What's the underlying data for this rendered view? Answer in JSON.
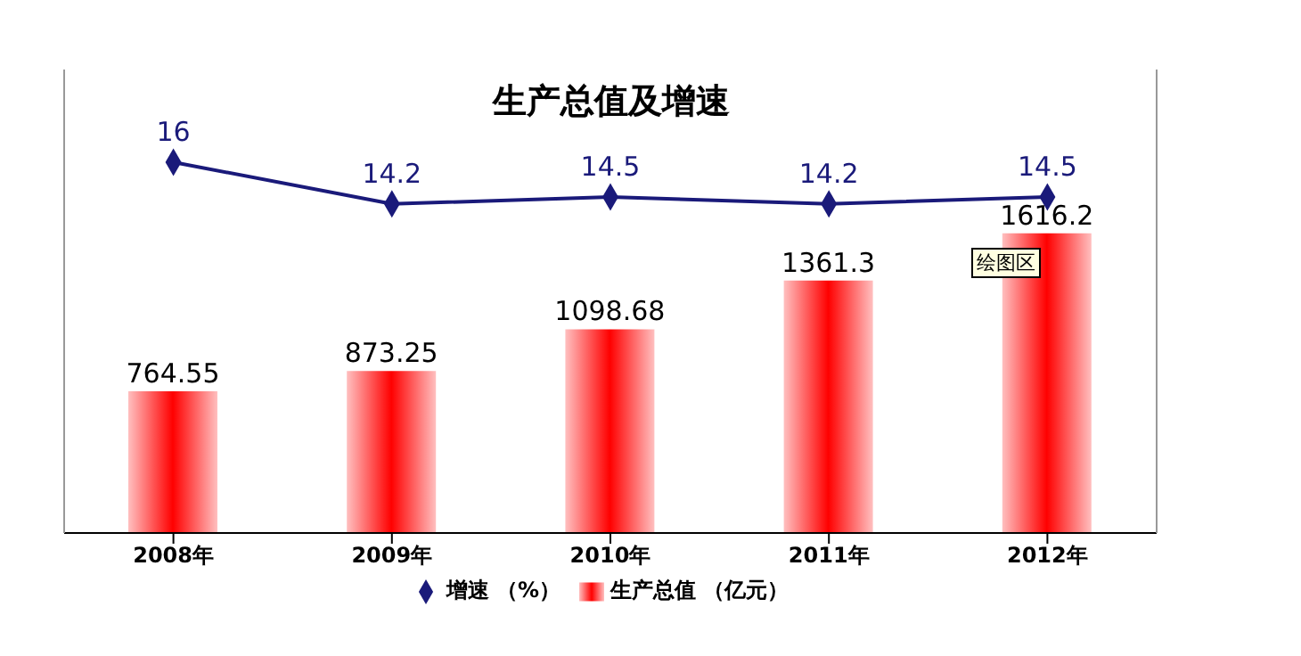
{
  "chart_data": {
    "type": "bar",
    "title": "生产总值及增速",
    "categories": [
      "2008年",
      "2009年",
      "2010年",
      "2011年",
      "2012年"
    ],
    "series": [
      {
        "name": "生产总值 （亿元）",
        "color": "#ff0000",
        "values": [
          764.55,
          873.25,
          1098.68,
          1361.3,
          1616.2
        ]
      },
      {
        "name": "增速 （%）",
        "type": "line",
        "axis": "y2",
        "color": "#1a1a7a",
        "marker": "diamond",
        "values": [
          16,
          14.2,
          14.5,
          14.2,
          14.5
        ]
      }
    ],
    "ylim": [
      0,
      2500
    ],
    "y2lim": [
      0,
      20
    ],
    "data_labels": true,
    "grid": false,
    "legend": "bottom",
    "tick_labels": "x",
    "annotations": [
      "绘图区"
    ]
  }
}
